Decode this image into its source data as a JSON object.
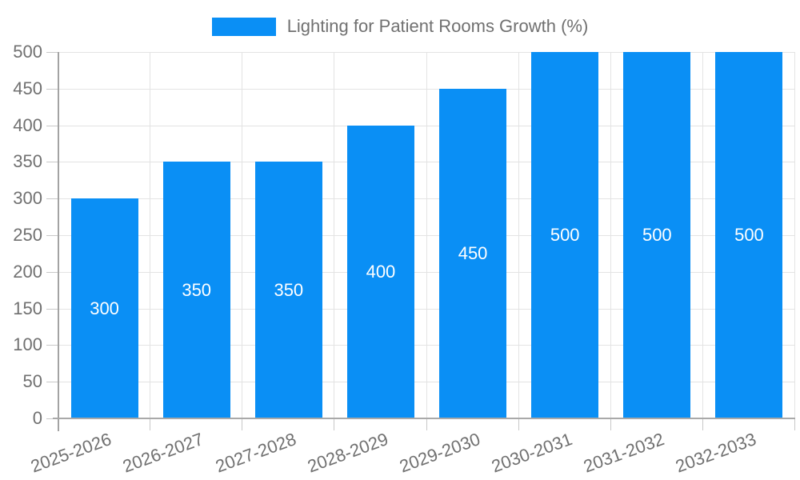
{
  "legend": {
    "label": "Lighting for Patient Rooms Growth (%)"
  },
  "chart_data": {
    "type": "bar",
    "title": "Lighting for Patient Rooms Growth (%)",
    "categories": [
      "2025-2026",
      "2026-2027",
      "2027-2028",
      "2028-2029",
      "2029-2030",
      "2030-2031",
      "2031-2032",
      "2032-2033"
    ],
    "values": [
      300,
      350,
      350,
      400,
      450,
      500,
      500,
      500
    ],
    "data_labels": [
      "300",
      "350",
      "350",
      "400",
      "450",
      "500",
      "500",
      "500"
    ],
    "xlabel": "",
    "ylabel": "",
    "ylim": [
      0,
      500
    ],
    "ytick_step": 50,
    "ytick_labels": [
      "0",
      "50",
      "100",
      "150",
      "200",
      "250",
      "300",
      "350",
      "400",
      "450",
      "500"
    ],
    "grid": true,
    "legend_position": "top-center",
    "x_label_rotation_deg": -20,
    "colors": {
      "bar": "#0a8ff5",
      "axis_line": "#a3a3a3",
      "gridline": "#e3e3e3",
      "tick_mark": "#c8c8c8",
      "axis_text": "#707070",
      "data_label_text": "#ffffff",
      "background": "#ffffff"
    }
  }
}
